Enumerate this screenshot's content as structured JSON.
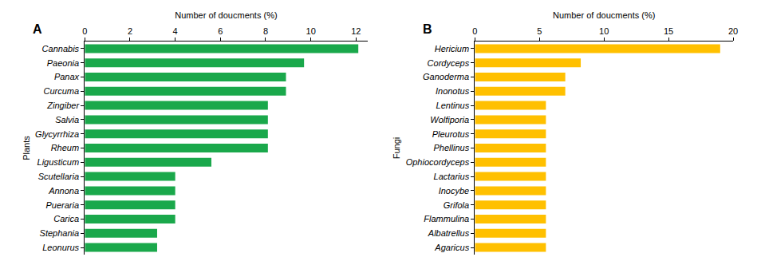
{
  "chart_data": [
    {
      "type": "bar",
      "title": "A",
      "orientation": "horizontal",
      "x_label": "Number of doucments (%)",
      "y_label": "Plants",
      "categories": [
        "Cannabis",
        "Paeonia",
        "Panax",
        "Curcuma",
        "Zingiber",
        "Salvia",
        "Glycyrrhiza",
        "Rheum",
        "Ligusticum",
        "Scutellaria",
        "Annona",
        "Pueraria",
        "Carica",
        "Stephania",
        "Leonurus"
      ],
      "values": [
        12.1,
        9.7,
        8.9,
        8.9,
        8.1,
        8.1,
        8.1,
        8.1,
        5.6,
        4.0,
        4.0,
        4.0,
        4.0,
        3.2,
        3.2
      ],
      "color": "#1aa84b",
      "xlim": [
        0,
        12.5
      ],
      "xticks": [
        0,
        2,
        4,
        6,
        8,
        10,
        12
      ],
      "grid": false
    },
    {
      "type": "bar",
      "title": "B",
      "orientation": "horizontal",
      "x_label": "Number of doucments (%)",
      "y_label": "Fungi",
      "categories": [
        "Hericium",
        "Cordyceps",
        "Ganoderma",
        "Inonotus",
        "Lentinus",
        "Wolfiporia",
        "Pleurotus",
        "Phellinus",
        "Ophiocordyceps",
        "Lactarius",
        "Inocybe",
        "Grifola",
        "Flammulina",
        "Albatrellus",
        "Agaricus"
      ],
      "values": [
        19.0,
        8.2,
        7.0,
        7.0,
        5.5,
        5.5,
        5.5,
        5.5,
        5.5,
        5.5,
        5.5,
        5.5,
        5.5,
        5.5,
        5.5
      ],
      "color": "#ffc000",
      "xlim": [
        0,
        20
      ],
      "xticks": [
        0,
        5,
        10,
        15,
        20
      ],
      "grid": false
    }
  ]
}
